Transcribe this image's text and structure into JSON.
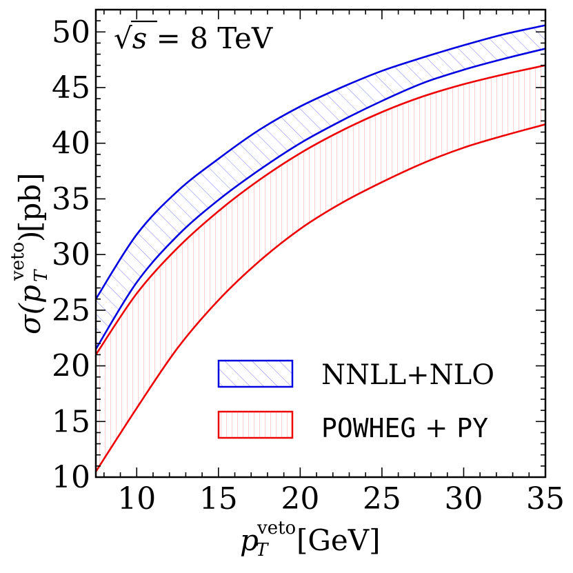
{
  "chart_data": {
    "type": "area",
    "title": "",
    "annotation": {
      "prefix": "√",
      "symbol": "s",
      "text": " = 8 TeV"
    },
    "xlabel": {
      "main": "p",
      "sub": "T",
      "sup": "veto",
      "unit": " [GeV]"
    },
    "ylabel": {
      "main": "σ(p",
      "sub": "T",
      "sup": "veto",
      "close": ")",
      "unit": " [pb]"
    },
    "xlim": [
      7.5,
      35
    ],
    "ylim": [
      10,
      52
    ],
    "xticks": [
      10,
      15,
      20,
      25,
      30,
      35
    ],
    "yticks": [
      10,
      15,
      20,
      25,
      30,
      35,
      40,
      45,
      50
    ],
    "x": [
      7.5,
      10,
      12.5,
      15,
      17.5,
      20,
      22.5,
      25,
      27.5,
      30,
      32.5,
      35
    ],
    "series": [
      {
        "name": "NNLL+NLO",
        "color": "#0000e0",
        "hatch": "diagonal",
        "upper": [
          26.0,
          31.8,
          35.7,
          38.6,
          41.2,
          43.3,
          45.0,
          46.5,
          47.7,
          48.8,
          49.8,
          50.6
        ],
        "lower": [
          21.5,
          27.5,
          31.7,
          34.9,
          37.6,
          40.0,
          42.0,
          43.8,
          45.4,
          46.6,
          47.6,
          48.5
        ]
      },
      {
        "name": "POWHEG + PY",
        "color": "#ee0000",
        "hatch": "vertical",
        "upper": [
          21.0,
          26.5,
          30.6,
          33.9,
          36.7,
          39.1,
          41.1,
          42.8,
          44.2,
          45.3,
          46.2,
          47.0
        ],
        "lower": [
          10.5,
          16.2,
          21.6,
          25.9,
          29.4,
          32.3,
          34.6,
          36.5,
          38.2,
          39.6,
          40.7,
          41.7
        ]
      }
    ],
    "legend": {
      "position": "lower-right",
      "entries": [
        {
          "label": "NNLL+NLO",
          "style": "serif"
        },
        {
          "label_mono_1": "POWHEG",
          "label_mid": " + ",
          "label_mono_2": "PY",
          "style": "mixed"
        }
      ]
    }
  }
}
